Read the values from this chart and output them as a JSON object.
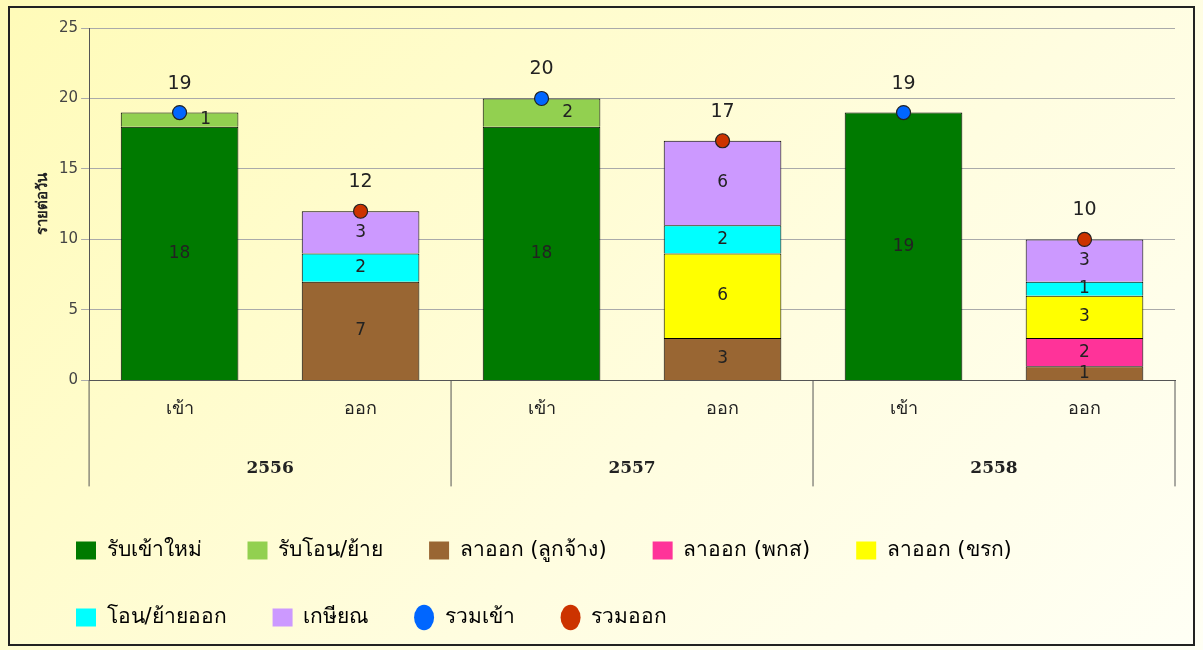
{
  "chart_data": {
    "type": "bar",
    "stacked": true,
    "ylabel": "รายต่อวัน",
    "categories": [
      "เข้า",
      "ออก",
      "เข้า",
      "ออก",
      "เข้า",
      "ออก"
    ],
    "annotations": [
      "2556",
      "2557",
      "2558"
    ],
    "ylim": [
      0,
      25
    ],
    "yticks": [
      0,
      5,
      10,
      15,
      20,
      25
    ],
    "grid": "y",
    "legend": "bottom",
    "data_labels": true,
    "marker": "circle",
    "series": [
      {
        "name": "รับเข้าใหม่",
        "color": "#007a00",
        "values": [
          18,
          null,
          18,
          null,
          19,
          null
        ]
      },
      {
        "name": "รับโอน/ย้าย",
        "color": "#92d050",
        "values": [
          1,
          null,
          2,
          null,
          null,
          null
        ]
      },
      {
        "name": "ลาออก (ลูกจ้าง)",
        "color": "#996633",
        "values": [
          null,
          7,
          null,
          3,
          null,
          1
        ]
      },
      {
        "name": "ลาออก (พกส)",
        "color": "#ff3399",
        "values": [
          null,
          null,
          null,
          null,
          null,
          2
        ]
      },
      {
        "name": "ลาออก (ขรก)",
        "color": "#ffff00",
        "values": [
          null,
          null,
          null,
          6,
          null,
          3
        ]
      },
      {
        "name": "โอน/ย้ายออก",
        "color": "#00ffff",
        "values": [
          null,
          2,
          null,
          2,
          null,
          1
        ]
      },
      {
        "name": "เกษียณ",
        "color": "#cc99ff",
        "values": [
          null,
          3,
          null,
          6,
          null,
          3
        ]
      },
      {
        "name": "รวมเข้า",
        "type": "scatter",
        "color": "#0066ff",
        "values": [
          19,
          null,
          20,
          null,
          19,
          null
        ]
      },
      {
        "name": "รวมออก",
        "type": "scatter",
        "color": "#cc3300",
        "values": [
          null,
          12,
          null,
          17,
          null,
          10
        ]
      }
    ]
  }
}
